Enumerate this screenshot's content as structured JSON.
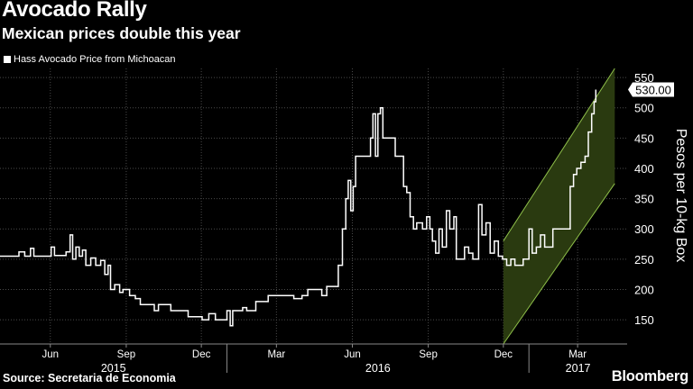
{
  "header": {
    "title": "Avocado Rally",
    "subtitle": "Mexican prices double this year",
    "legend_label": "Hass Avocado Price from Michoacan"
  },
  "footer": {
    "source": "Source: Secretaria de Economia",
    "brand": "Bloomberg"
  },
  "colors": {
    "background": "#000000",
    "line": "#ffffff",
    "grid": "#4a4a4a",
    "channel_fill": "#2a3a10",
    "channel_edge": "#8fc04a"
  },
  "chart_data": {
    "type": "line",
    "title": "Avocado Rally",
    "subtitle": "Mexican prices double this year",
    "ylabel": "Pesos per 10-kg Box",
    "ylim": [
      110,
      565
    ],
    "yticks": [
      150,
      200,
      250,
      300,
      350,
      400,
      450,
      500,
      550
    ],
    "xlim": [
      "2015-04-01",
      "2017-04-30"
    ],
    "x_tick_labels": [
      {
        "date": "2015-06-01",
        "label": "Jun"
      },
      {
        "date": "2015-09-01",
        "label": "Sep"
      },
      {
        "date": "2015-12-01",
        "label": "Dec"
      },
      {
        "date": "2016-03-01",
        "label": "Mar"
      },
      {
        "date": "2016-06-01",
        "label": "Jun"
      },
      {
        "date": "2016-09-01",
        "label": "Sep"
      },
      {
        "date": "2016-12-01",
        "label": "Dec"
      },
      {
        "date": "2017-03-01",
        "label": "Mar"
      }
    ],
    "x_year_labels": [
      {
        "label": "2015",
        "from": "2015-04-01",
        "to": "2016-01-01"
      },
      {
        "label": "2016",
        "from": "2016-01-01",
        "to": "2017-01-01"
      },
      {
        "label": "2017",
        "from": "2017-01-01",
        "to": "2017-04-30"
      }
    ],
    "grid": true,
    "legend_position": "top-left",
    "last_value_label": "530.00",
    "trend_channel": {
      "start": "2016-12-01",
      "end": "2017-04-15",
      "upper": [
        280,
        565
      ],
      "lower": [
        110,
        375
      ]
    },
    "series": [
      {
        "name": "Hass Avocado Price from Michoacan",
        "points": [
          [
            "2015-04-01",
            255
          ],
          [
            "2015-04-20",
            255
          ],
          [
            "2015-04-24",
            262
          ],
          [
            "2015-05-01",
            255
          ],
          [
            "2015-05-08",
            268
          ],
          [
            "2015-05-12",
            255
          ],
          [
            "2015-05-25",
            255
          ],
          [
            "2015-06-02",
            270
          ],
          [
            "2015-06-06",
            256
          ],
          [
            "2015-06-20",
            262
          ],
          [
            "2015-06-25",
            290
          ],
          [
            "2015-06-28",
            250
          ],
          [
            "2015-07-02",
            270
          ],
          [
            "2015-07-06",
            255
          ],
          [
            "2015-07-10",
            265
          ],
          [
            "2015-07-14",
            240
          ],
          [
            "2015-07-20",
            252
          ],
          [
            "2015-07-26",
            240
          ],
          [
            "2015-08-01",
            248
          ],
          [
            "2015-08-06",
            225
          ],
          [
            "2015-08-10",
            240
          ],
          [
            "2015-08-13",
            200
          ],
          [
            "2015-08-18",
            208
          ],
          [
            "2015-08-24",
            195
          ],
          [
            "2015-08-28",
            200
          ],
          [
            "2015-09-05",
            190
          ],
          [
            "2015-09-12",
            185
          ],
          [
            "2015-09-18",
            175
          ],
          [
            "2015-10-01",
            175
          ],
          [
            "2015-10-05",
            165
          ],
          [
            "2015-10-10",
            175
          ],
          [
            "2015-10-20",
            175
          ],
          [
            "2015-10-25",
            165
          ],
          [
            "2015-11-10",
            165
          ],
          [
            "2015-11-15",
            155
          ],
          [
            "2015-11-25",
            155
          ],
          [
            "2015-12-02",
            150
          ],
          [
            "2015-12-10",
            160
          ],
          [
            "2015-12-18",
            150
          ],
          [
            "2015-12-25",
            150
          ],
          [
            "2016-01-01",
            165
          ],
          [
            "2016-01-05",
            140
          ],
          [
            "2016-01-08",
            165
          ],
          [
            "2016-01-20",
            170
          ],
          [
            "2016-01-25",
            165
          ],
          [
            "2016-02-05",
            180
          ],
          [
            "2016-02-15",
            180
          ],
          [
            "2016-02-20",
            190
          ],
          [
            "2016-03-15",
            190
          ],
          [
            "2016-03-22",
            185
          ],
          [
            "2016-04-01",
            190
          ],
          [
            "2016-04-08",
            200
          ],
          [
            "2016-04-20",
            200
          ],
          [
            "2016-04-25",
            190
          ],
          [
            "2016-05-01",
            205
          ],
          [
            "2016-05-10",
            205
          ],
          [
            "2016-05-15",
            240
          ],
          [
            "2016-05-18",
            240
          ],
          [
            "2016-05-20",
            300
          ],
          [
            "2016-05-24",
            350
          ],
          [
            "2016-05-27",
            380
          ],
          [
            "2016-05-30",
            330
          ],
          [
            "2016-06-02",
            370
          ],
          [
            "2016-06-05",
            420
          ],
          [
            "2016-06-20",
            420
          ],
          [
            "2016-06-23",
            450
          ],
          [
            "2016-06-26",
            490
          ],
          [
            "2016-06-29",
            420
          ],
          [
            "2016-07-02",
            490
          ],
          [
            "2016-07-05",
            500
          ],
          [
            "2016-07-08",
            450
          ],
          [
            "2016-07-20",
            450
          ],
          [
            "2016-07-23",
            420
          ],
          [
            "2016-07-28",
            420
          ],
          [
            "2016-08-02",
            370
          ],
          [
            "2016-08-06",
            360
          ],
          [
            "2016-08-10",
            320
          ],
          [
            "2016-08-14",
            300
          ],
          [
            "2016-08-18",
            310
          ],
          [
            "2016-08-25",
            300
          ],
          [
            "2016-08-30",
            320
          ],
          [
            "2016-09-03",
            300
          ],
          [
            "2016-09-06",
            280
          ],
          [
            "2016-09-10",
            260
          ],
          [
            "2016-09-14",
            300
          ],
          [
            "2016-09-18",
            270
          ],
          [
            "2016-09-23",
            330
          ],
          [
            "2016-09-27",
            300
          ],
          [
            "2016-10-02",
            320
          ],
          [
            "2016-10-05",
            250
          ],
          [
            "2016-10-10",
            250
          ],
          [
            "2016-10-15",
            270
          ],
          [
            "2016-10-20",
            260
          ],
          [
            "2016-10-25",
            250
          ],
          [
            "2016-11-01",
            340
          ],
          [
            "2016-11-05",
            290
          ],
          [
            "2016-11-10",
            310
          ],
          [
            "2016-11-15",
            260
          ],
          [
            "2016-11-20",
            280
          ],
          [
            "2016-11-25",
            255
          ],
          [
            "2016-11-30",
            250
          ],
          [
            "2016-12-05",
            240
          ],
          [
            "2016-12-10",
            250
          ],
          [
            "2016-12-15",
            240
          ],
          [
            "2016-12-20",
            240
          ],
          [
            "2016-12-25",
            250
          ],
          [
            "2017-01-01",
            300
          ],
          [
            "2017-01-05",
            260
          ],
          [
            "2017-01-10",
            270
          ],
          [
            "2017-01-15",
            290
          ],
          [
            "2017-01-20",
            270
          ],
          [
            "2017-01-30",
            300
          ],
          [
            "2017-02-15",
            300
          ],
          [
            "2017-02-20",
            370
          ],
          [
            "2017-02-24",
            390
          ],
          [
            "2017-02-28",
            400
          ],
          [
            "2017-03-05",
            410
          ],
          [
            "2017-03-10",
            420
          ],
          [
            "2017-03-14",
            460
          ],
          [
            "2017-03-18",
            490
          ],
          [
            "2017-03-21",
            510
          ],
          [
            "2017-03-23",
            530
          ]
        ]
      }
    ]
  }
}
